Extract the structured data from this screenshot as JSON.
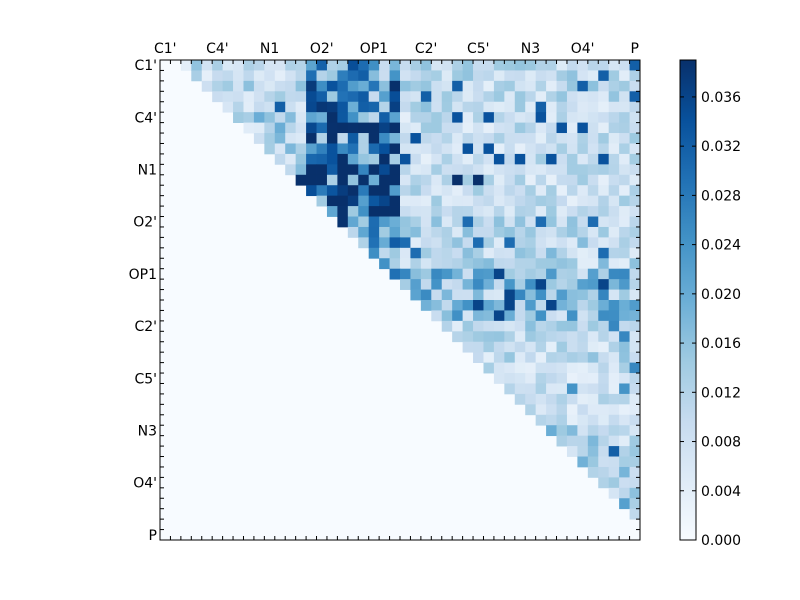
{
  "chart_data": {
    "type": "heatmap",
    "title": "",
    "xlabel": "",
    "ylabel": "",
    "labels": [
      "C1'",
      "C4'",
      "N1",
      "O2'",
      "OP1",
      "C2'",
      "C5'",
      "N3",
      "O4'",
      "P"
    ],
    "grid_size": 46,
    "label_index_step": 5,
    "colormap": "Blues",
    "colors": {
      "low": "#f7fbff",
      "high": "#08306b"
    },
    "vmin": 0.0,
    "vmax": 0.039,
    "colorbar_ticks": [
      "0.000",
      "0.004",
      "0.008",
      "0.012",
      "0.016",
      "0.020",
      "0.024",
      "0.028",
      "0.032",
      "0.036"
    ],
    "colorbar_tick_values": [
      0.0,
      0.004,
      0.008,
      0.012,
      0.016,
      0.02,
      0.024,
      0.028,
      0.032,
      0.036
    ],
    "matrix_structure": "upper-triangular (values above diagonal, zero elsewhere)",
    "row_profiles": [
      {
        "rows": "0-4",
        "cols_0_13": 0.01,
        "cols_14_22": 0.024,
        "cols_23_45": 0.01,
        "peak": 0.032
      },
      {
        "rows": "5-9",
        "cols_0_13": 0.012,
        "cols_14_22": 0.028,
        "cols_23_45": 0.009,
        "peak": 0.034
      },
      {
        "rows": "10-14",
        "cols_0_13": 0.012,
        "cols_14_22": 0.034,
        "cols_23_45": 0.009,
        "peak": 0.039
      },
      {
        "rows": "15-19",
        "cols_0_13": 0.008,
        "cols_14_22": 0.024,
        "cols_23_45": 0.011,
        "peak": 0.03
      },
      {
        "rows": "20-24",
        "cols_0_13": 0.0,
        "cols_14_22": 0.03,
        "cols_23_45": 0.016,
        "peak": 0.036
      },
      {
        "rows": "25-29",
        "cols_0_13": 0.0,
        "cols_14_22": 0.0,
        "cols_23_45": 0.01,
        "peak": 0.026
      },
      {
        "rows": "30-34",
        "cols_0_13": 0.0,
        "cols_14_22": 0.0,
        "cols_23_45": 0.008,
        "peak": 0.024
      },
      {
        "rows": "35-39",
        "cols_0_13": 0.0,
        "cols_14_22": 0.0,
        "cols_23_45": 0.012,
        "peak": 0.032
      },
      {
        "rows": "40-45",
        "cols_0_13": 0.0,
        "cols_14_22": 0.0,
        "cols_23_45": 0.01,
        "peak": 0.022
      }
    ]
  }
}
